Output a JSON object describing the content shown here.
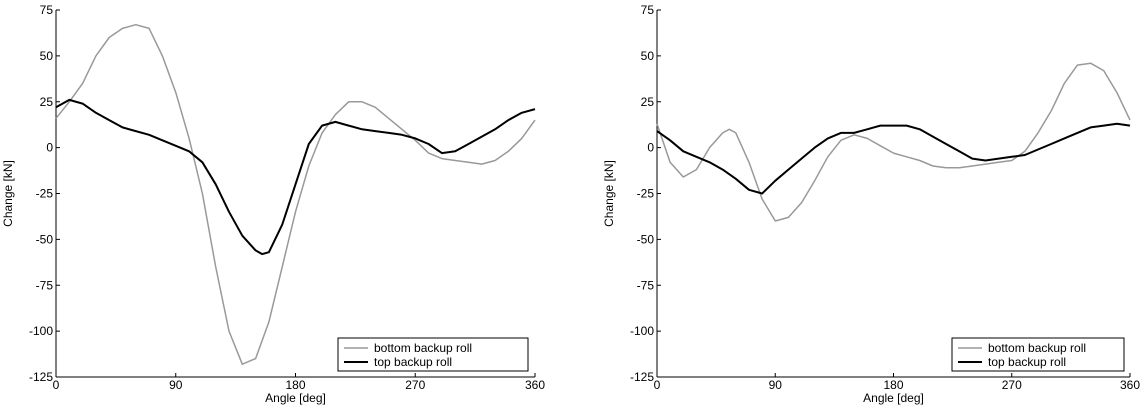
{
  "chart_data": [
    {
      "type": "line",
      "xlabel": "Angle [deg]",
      "ylabel": "Change [kN]",
      "xlim": [
        0,
        360
      ],
      "ylim": [
        -125,
        75
      ],
      "xticks": [
        0,
        90,
        180,
        270,
        360
      ],
      "yticks": [
        75,
        50,
        25,
        0,
        -25,
        -50,
        -75,
        -100,
        -125
      ],
      "grid": false,
      "legend_position": "bottom-right",
      "series": [
        {
          "name": "bottom backup roll",
          "color": "#999999",
          "x": [
            0,
            10,
            20,
            30,
            40,
            50,
            60,
            70,
            80,
            90,
            100,
            110,
            120,
            130,
            140,
            150,
            160,
            170,
            180,
            190,
            200,
            210,
            220,
            230,
            240,
            250,
            260,
            270,
            280,
            290,
            300,
            310,
            320,
            330,
            340,
            350,
            360
          ],
          "y": [
            16,
            25,
            35,
            50,
            60,
            65,
            67,
            65,
            50,
            30,
            5,
            -25,
            -65,
            -100,
            -118,
            -115,
            -95,
            -65,
            -35,
            -10,
            8,
            18,
            25,
            25,
            22,
            16,
            10,
            4,
            -3,
            -6,
            -7,
            -8,
            -9,
            -7,
            -2,
            5,
            15
          ]
        },
        {
          "name": "top backup roll",
          "color": "#000000",
          "x": [
            0,
            10,
            20,
            30,
            40,
            50,
            60,
            70,
            80,
            90,
            100,
            110,
            120,
            130,
            140,
            150,
            155,
            160,
            170,
            180,
            190,
            200,
            210,
            220,
            230,
            240,
            250,
            260,
            270,
            280,
            290,
            300,
            310,
            320,
            330,
            340,
            350,
            360
          ],
          "y": [
            22,
            26,
            24,
            19,
            15,
            11,
            9,
            7,
            4,
            1,
            -2,
            -8,
            -20,
            -35,
            -48,
            -56,
            -58,
            -57,
            -42,
            -20,
            2,
            12,
            14,
            12,
            10,
            9,
            8,
            7,
            5,
            2,
            -3,
            -2,
            2,
            6,
            10,
            15,
            19,
            21
          ]
        }
      ]
    },
    {
      "type": "line",
      "xlabel": "Angle [deg]",
      "ylabel": "Change [kN]",
      "xlim": [
        0,
        360
      ],
      "ylim": [
        -125,
        75
      ],
      "xticks": [
        0,
        90,
        180,
        270,
        360
      ],
      "yticks": [
        75,
        50,
        25,
        0,
        -25,
        -50,
        -75,
        -100,
        -125
      ],
      "grid": false,
      "legend_position": "bottom-right",
      "series": [
        {
          "name": "bottom backup roll",
          "color": "#999999",
          "x": [
            0,
            10,
            20,
            30,
            40,
            50,
            55,
            60,
            70,
            80,
            90,
            100,
            110,
            120,
            130,
            140,
            150,
            160,
            170,
            180,
            190,
            200,
            210,
            220,
            230,
            240,
            250,
            260,
            270,
            280,
            290,
            300,
            310,
            320,
            330,
            340,
            350,
            360
          ],
          "y": [
            13,
            -8,
            -16,
            -12,
            0,
            8,
            10,
            8,
            -8,
            -28,
            -40,
            -38,
            -30,
            -18,
            -5,
            4,
            7,
            5,
            1,
            -3,
            -5,
            -7,
            -10,
            -11,
            -11,
            -10,
            -9,
            -8,
            -7,
            -2,
            8,
            20,
            35,
            45,
            46,
            42,
            30,
            15
          ]
        },
        {
          "name": "top backup roll",
          "color": "#000000",
          "x": [
            0,
            10,
            20,
            30,
            40,
            50,
            60,
            70,
            80,
            90,
            100,
            110,
            120,
            130,
            140,
            150,
            160,
            170,
            180,
            190,
            200,
            210,
            220,
            230,
            240,
            250,
            260,
            270,
            280,
            290,
            300,
            310,
            320,
            330,
            340,
            350,
            360
          ],
          "y": [
            9,
            4,
            -2,
            -5,
            -8,
            -12,
            -17,
            -23,
            -25,
            -18,
            -12,
            -6,
            0,
            5,
            8,
            8,
            10,
            12,
            12,
            12,
            10,
            6,
            2,
            -2,
            -6,
            -7,
            -6,
            -5,
            -4,
            -1,
            2,
            5,
            8,
            11,
            12,
            13,
            12
          ]
        }
      ]
    }
  ]
}
